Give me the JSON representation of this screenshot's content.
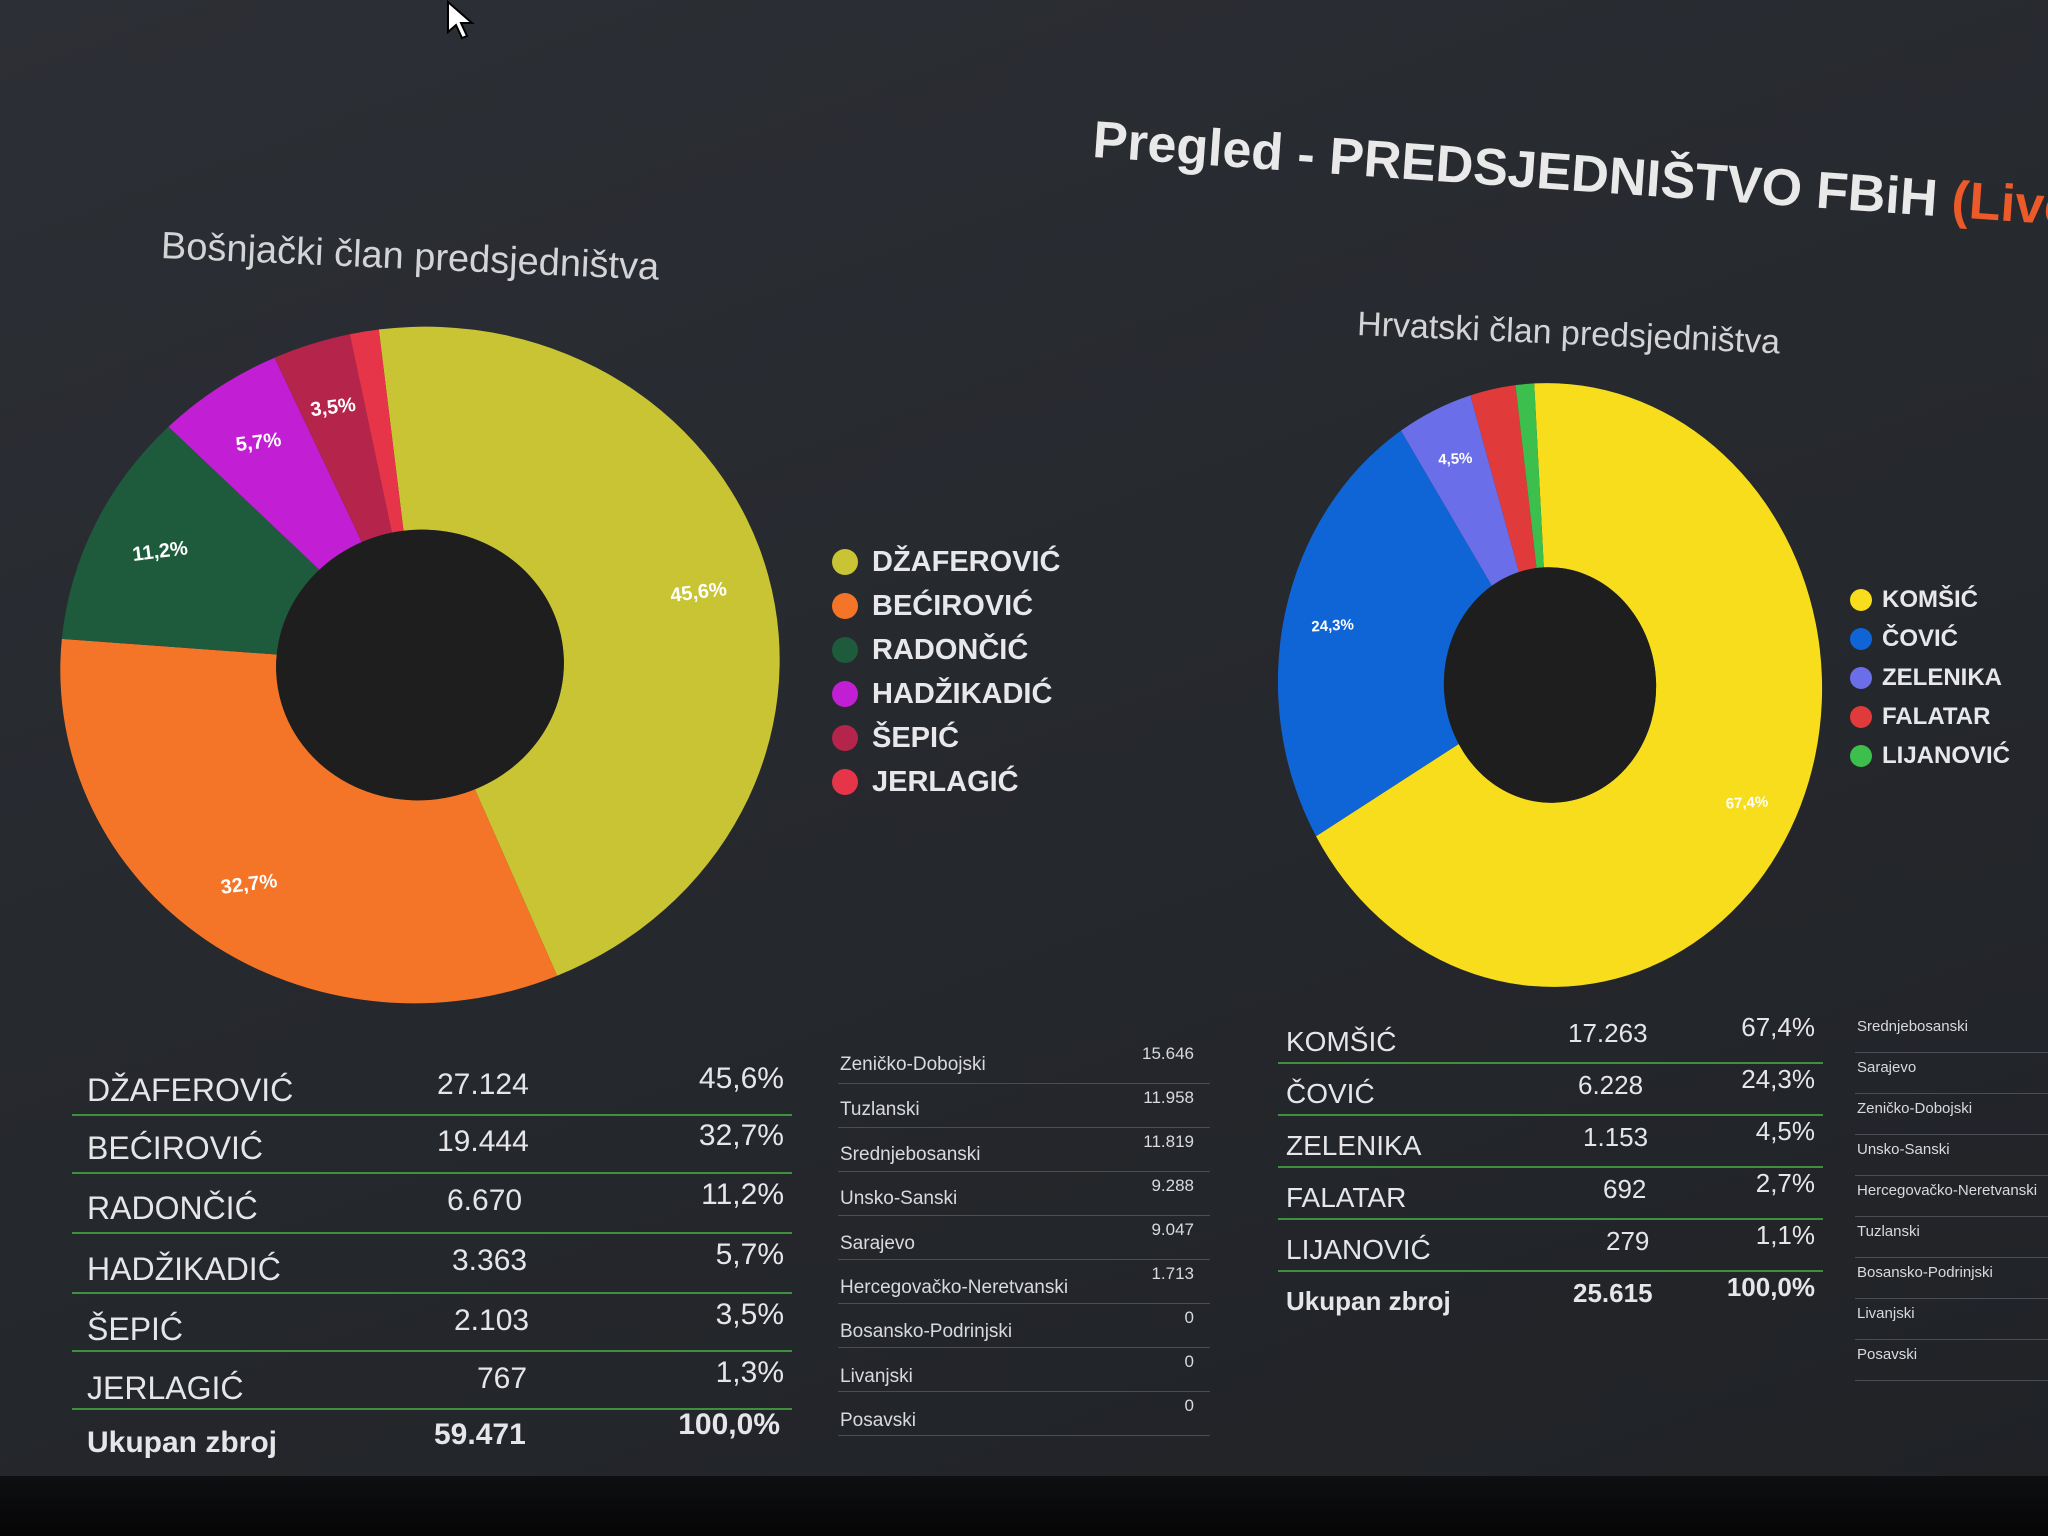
{
  "header": {
    "title_main": "Pregled - PREDSJEDNIŠTVO FBiH",
    "title_live": "(Live)"
  },
  "bosnjacki": {
    "title": "Bošnjački član predsjedništva",
    "legend": [
      "DŽAFEROVIĆ",
      "BEĆIROVIĆ",
      "RADONČIĆ",
      "HADŽIKADIĆ",
      "ŠEPIĆ",
      "JERLAGIĆ"
    ],
    "rows": [
      {
        "name": "DŽAFEROVIĆ",
        "votes": "27.124",
        "pct": "45,6%"
      },
      {
        "name": "BEĆIROVIĆ",
        "votes": "19.444",
        "pct": "32,7%"
      },
      {
        "name": "RADONČIĆ",
        "votes": "6.670",
        "pct": "11,2%"
      },
      {
        "name": "HADŽIKADIĆ",
        "votes": "3.363",
        "pct": "5,7%"
      },
      {
        "name": "ŠEPIĆ",
        "votes": "2.103",
        "pct": "3,5%"
      },
      {
        "name": "JERLAGIĆ",
        "votes": "767",
        "pct": "1,3%"
      }
    ],
    "total": {
      "label": "Ukupan zbroj",
      "votes": "59.471",
      "pct": "100,0%"
    },
    "cantons": [
      {
        "name": "Zeničko-Dobojski",
        "votes": "15.646"
      },
      {
        "name": "Tuzlanski",
        "votes": "11.958"
      },
      {
        "name": "Srednjebosanski",
        "votes": "11.819"
      },
      {
        "name": "Unsko-Sanski",
        "votes": "9.288"
      },
      {
        "name": "Sarajevo",
        "votes": "9.047"
      },
      {
        "name": "Hercegovačko-Neretvanski",
        "votes": "1.713"
      },
      {
        "name": "Bosansko-Podrinjski",
        "votes": "0"
      },
      {
        "name": "Livanjski",
        "votes": "0"
      },
      {
        "name": "Posavski",
        "votes": "0"
      }
    ]
  },
  "hrvatski": {
    "title": "Hrvatski član predsjedništva",
    "legend": [
      "KOMŠIĆ",
      "ČOVIĆ",
      "ZELENIKA",
      "FALATAR",
      "LIJANOVIĆ"
    ],
    "rows": [
      {
        "name": "KOMŠIĆ",
        "votes": "17.263",
        "pct": "67,4%"
      },
      {
        "name": "ČOVIĆ",
        "votes": "6.228",
        "pct": "24,3%"
      },
      {
        "name": "ZELENIKA",
        "votes": "1.153",
        "pct": "4,5%"
      },
      {
        "name": "FALATAR",
        "votes": "692",
        "pct": "2,7%"
      },
      {
        "name": "LIJANOVIĆ",
        "votes": "279",
        "pct": "1,1%"
      }
    ],
    "total": {
      "label": "Ukupan zbroj",
      "votes": "25.615",
      "pct": "100,0%"
    },
    "cantons": [
      {
        "name": "Srednjebosanski"
      },
      {
        "name": "Sarajevo"
      },
      {
        "name": "Zeničko-Dobojski"
      },
      {
        "name": "Unsko-Sanski"
      },
      {
        "name": "Hercegovačko-Neretvanski"
      },
      {
        "name": "Tuzlanski"
      },
      {
        "name": "Bosansko-Podrinjski"
      },
      {
        "name": "Livanjski"
      },
      {
        "name": "Posavski"
      }
    ]
  },
  "chart_data": [
    {
      "type": "pie",
      "title": "Bošnjački član predsjedništva",
      "categories": [
        "DŽAFEROVIĆ",
        "BEĆIROVIĆ",
        "RADONČIĆ",
        "HADŽIKADIĆ",
        "ŠEPIĆ",
        "JERLAGIĆ"
      ],
      "values": [
        45.6,
        32.7,
        11.2,
        5.7,
        3.5,
        1.3
      ],
      "labels": [
        "45,6%",
        "32,7%",
        "11,2%",
        "5,7%",
        "3,5%",
        ""
      ],
      "colors": [
        "#c9c433",
        "#f47527",
        "#1e5b3c",
        "#c21ed3",
        "#b5244a",
        "#e63448"
      ],
      "legend": "right"
    },
    {
      "type": "pie",
      "title": "Hrvatski član predsjedništva",
      "categories": [
        "KOMŠIĆ",
        "ČOVIĆ",
        "ZELENIKA",
        "FALATAR",
        "LIJANOVIĆ"
      ],
      "values": [
        67.4,
        24.3,
        4.5,
        2.7,
        1.1
      ],
      "labels": [
        "67,4%",
        "24,3%",
        "4,5%",
        "",
        ""
      ],
      "colors": [
        "#f7dd1b",
        "#0f65d6",
        "#6a6ee8",
        "#e13a3a",
        "#3cbf4c"
      ],
      "legend": "right"
    }
  ]
}
